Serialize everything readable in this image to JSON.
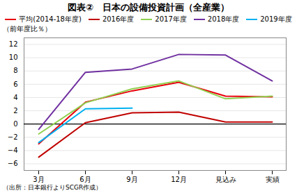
{
  "chart_data": {
    "type": "line",
    "title": "図表②　日本の設備投資計画（全産業）",
    "ylabel": "（前年度比％）",
    "caption": "（出所：日本銀行よりSCGR作成）",
    "categories": [
      "3月",
      "6月",
      "9月",
      "12月",
      "見込み",
      "実績"
    ],
    "series": [
      {
        "name": "平均(2014-18年度)",
        "color": "#e8000a",
        "values": [
          -3.0,
          3.3,
          5.0,
          6.3,
          4.2,
          4.1
        ]
      },
      {
        "name": "2016年度",
        "color": "#c00000",
        "values": [
          -5.0,
          0.2,
          1.7,
          1.8,
          0.3,
          0.3
        ]
      },
      {
        "name": "2017年度",
        "color": "#92d050",
        "values": [
          -1.5,
          3.2,
          5.3,
          6.5,
          3.8,
          4.2
        ]
      },
      {
        "name": "2018年度",
        "color": "#7030a0",
        "values": [
          -0.8,
          7.8,
          8.3,
          10.5,
          10.4,
          6.5
        ]
      },
      {
        "name": "2019年度",
        "color": "#00b0f0",
        "values": [
          -2.8,
          2.3,
          2.4,
          null,
          null,
          null
        ]
      }
    ],
    "ylim": [
      -7,
      13
    ],
    "yticks": [
      -6,
      -4,
      -2,
      0,
      2,
      4,
      6,
      8,
      10,
      12
    ],
    "grid": true,
    "legend": "top"
  }
}
